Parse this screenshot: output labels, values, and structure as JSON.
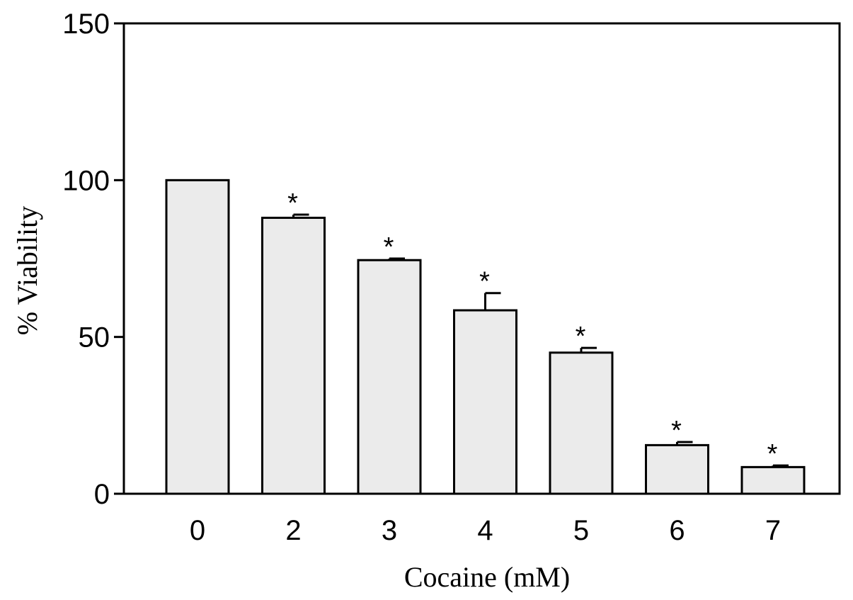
{
  "chart_data": {
    "type": "bar",
    "title": "",
    "xlabel": "Cocaine (mM)",
    "ylabel": "% Viability",
    "categories": [
      "0",
      "2",
      "3",
      "4",
      "5",
      "6",
      "7"
    ],
    "values": [
      100,
      88,
      74.5,
      58.5,
      45,
      15.5,
      8.5
    ],
    "errors": [
      0,
      1,
      0.5,
      5.5,
      1.5,
      1,
      0.5
    ],
    "significance": [
      "",
      "*",
      "*",
      "*",
      "*",
      "*",
      "*"
    ],
    "ylim": [
      0,
      150
    ],
    "yticks": [
      0,
      50,
      100,
      150
    ],
    "ytick_labels": [
      "0",
      "50",
      "100",
      "150"
    ],
    "grid": false,
    "legend": "none",
    "bar_color": "#ebebeb",
    "edge_color": "#000000"
  }
}
